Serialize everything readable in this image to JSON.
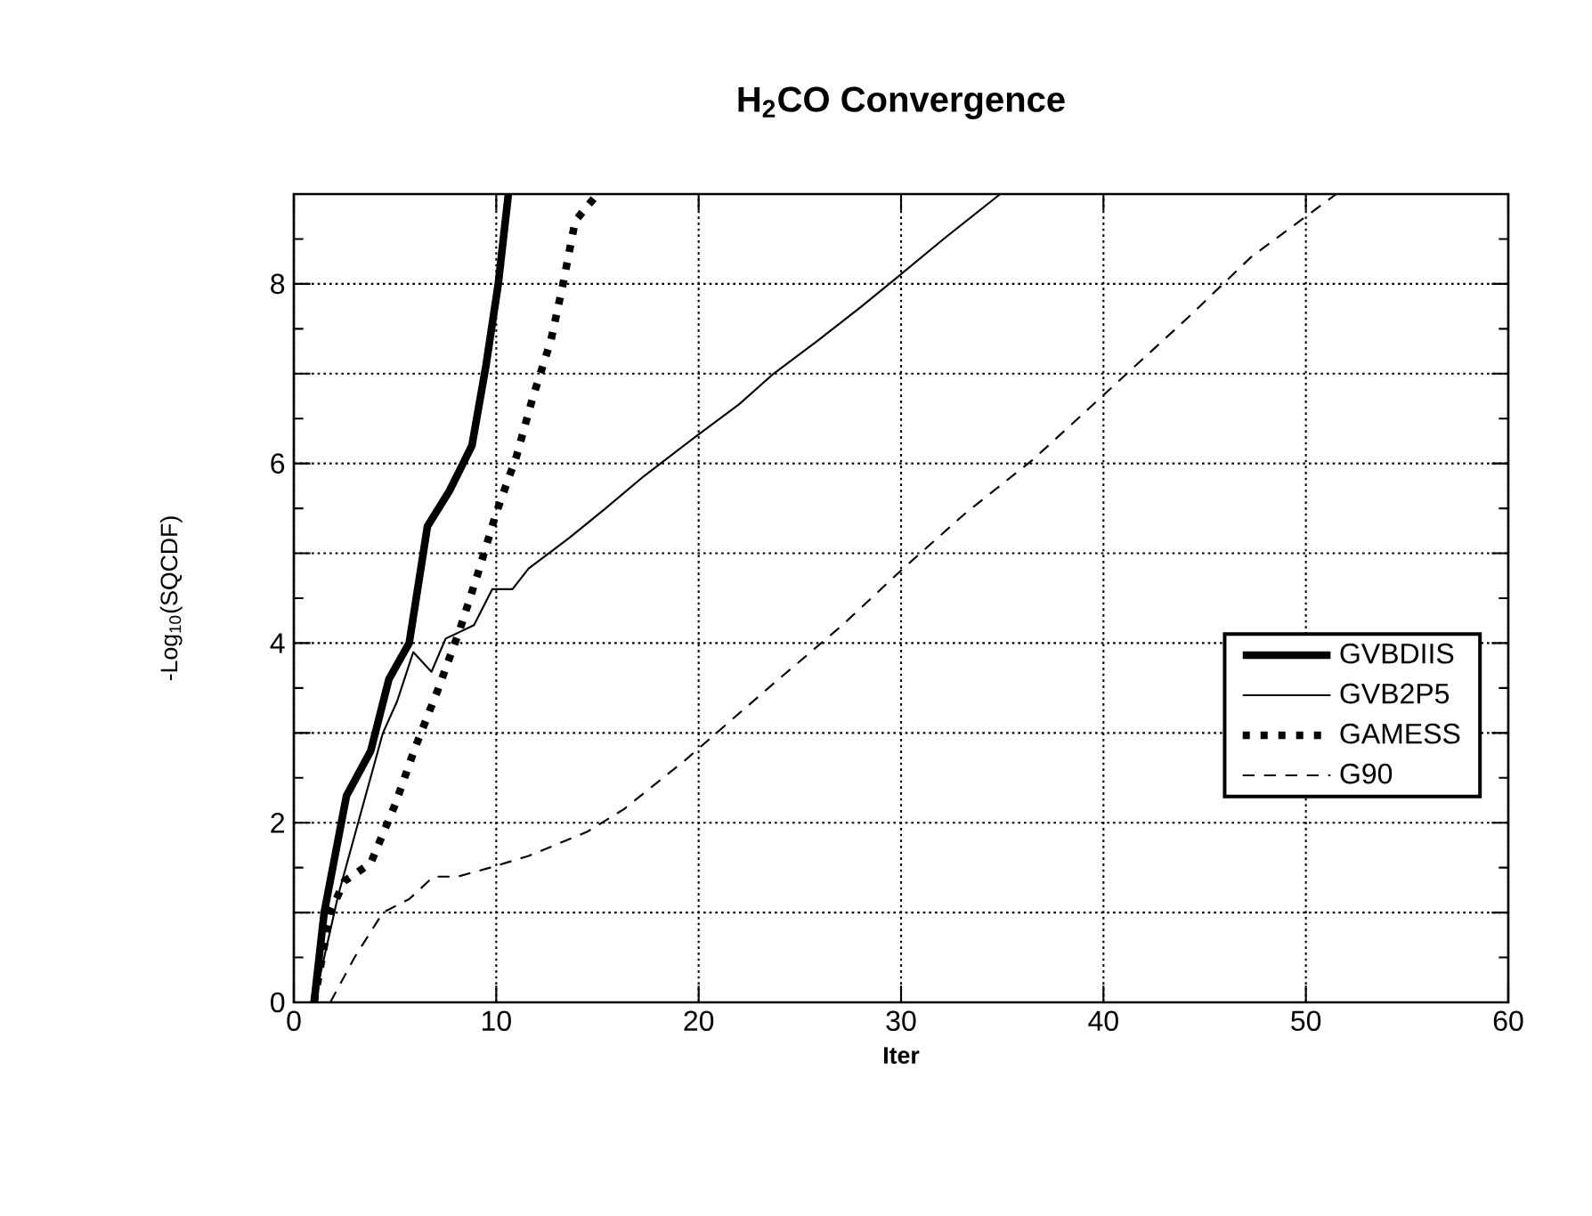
{
  "chart_data": {
    "type": "line",
    "title": "H$_{2}$CO Convergence",
    "xlabel": "Iter",
    "ylabel": "-Log$_{10}$(SQCDF)",
    "xlim": [
      0,
      60
    ],
    "ylim": [
      0,
      9
    ],
    "xticks": [
      0,
      10,
      20,
      30,
      40,
      50,
      60
    ],
    "yticks": [
      0,
      {
        "value": 1,
        "label": null
      },
      2,
      {
        "value": 3,
        "label": null
      },
      4,
      {
        "value": 5,
        "label": null
      },
      6,
      {
        "value": 7,
        "label": null
      },
      8,
      {
        "value": 9,
        "label": null
      }
    ],
    "grid": true,
    "legend": "right",
    "series": [
      {
        "name": "GVBDIIS",
        "color": "#000000",
        "line_style": "solid",
        "x": [
          1,
          1.5,
          2.6,
          3.8,
          4.7,
          5.7,
          6.6,
          7.7,
          8.8,
          9.5,
          10.1,
          10.6
        ],
        "values": [
          0,
          1.0,
          2.3,
          2.8,
          3.6,
          4.0,
          5.3,
          5.7,
          6.2,
          7.1,
          8.0,
          9.0
        ]
      },
      {
        "name": "GVB2P5",
        "color": "#000000",
        "line_style": "solid",
        "x": [
          1,
          2.2,
          4.4,
          5.1,
          5.9,
          6.8,
          7.5,
          8.9,
          9.8,
          10.8,
          11.6,
          13.6,
          15.4,
          17.3,
          19.8,
          22.0,
          23.7,
          25.9,
          28.0,
          29.9,
          32.1,
          34.9
        ],
        "values": [
          0,
          1.2,
          3.0,
          3.35,
          3.9,
          3.68,
          4.05,
          4.2,
          4.6,
          4.6,
          4.83,
          5.17,
          5.5,
          5.86,
          6.29,
          6.66,
          7.0,
          7.37,
          7.74,
          8.09,
          8.5,
          9.0
        ]
      },
      {
        "name": "GAMESS",
        "color": "#000000",
        "line_style": "dotted",
        "x": [
          1,
          1.8,
          2.5,
          3.8,
          5.0,
          6.0,
          7.1,
          8.2,
          9.1,
          10.0,
          11.0,
          11.8,
          12.7,
          13.3,
          13.9,
          15.0
        ],
        "values": [
          0,
          1.0,
          1.35,
          1.55,
          2.2,
          2.84,
          3.47,
          4.15,
          4.78,
          5.45,
          6.08,
          6.73,
          7.37,
          8.0,
          8.7,
          9.0
        ]
      },
      {
        "name": "G90",
        "color": "#000000",
        "line_style": "dashed",
        "x": [
          1.8,
          3.0,
          4.4,
          5.7,
          6.9,
          8.1,
          9.7,
          11.6,
          14.5,
          16.3,
          19.3,
          23.7,
          27.1,
          30.1,
          33.2,
          36.5,
          39.8,
          44.2,
          47.3,
          51.5
        ],
        "values": [
          0,
          0.5,
          1.0,
          1.15,
          1.4,
          1.4,
          1.5,
          1.63,
          1.9,
          2.15,
          2.69,
          3.55,
          4.2,
          4.83,
          5.45,
          6.04,
          6.72,
          7.63,
          8.3,
          9.0
        ]
      }
    ]
  }
}
